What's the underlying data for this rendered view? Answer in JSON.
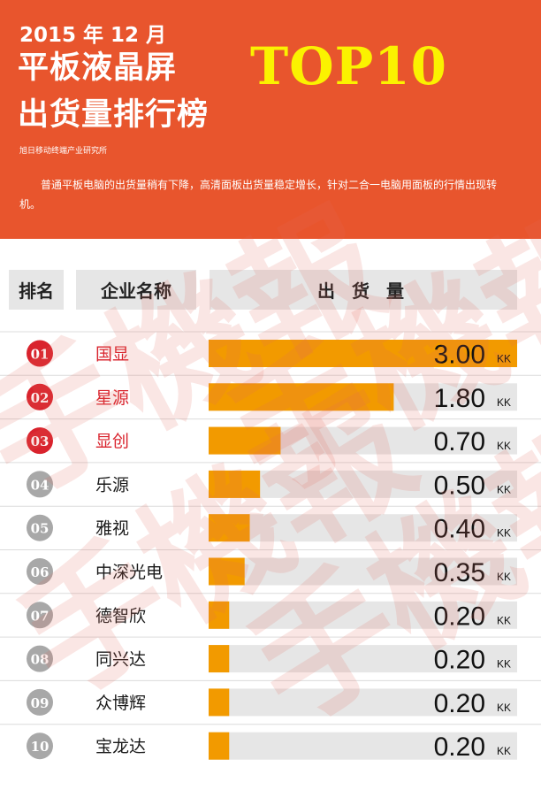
{
  "header": {
    "date": "2015 年 12 月",
    "title_line1": "平板液晶屏",
    "title_line2": "出货量排行榜",
    "badge": "TOP10",
    "source": "旭日移动终端产业研究所",
    "description": "普通平板电脑的出货量稍有下降，高清面板出货量稳定增长，针对二合一电脑用面板的行情出现转机。"
  },
  "table_header": {
    "rank": "排名",
    "company": "企业名称",
    "shipment": "出 货 量"
  },
  "watermark": "手機報",
  "colors": {
    "header_bg": "#e8552d",
    "badge_text": "#fbf200",
    "bar_fill": "#f29a00",
    "bar_track": "#e6e6e6",
    "top_rank": "#d9232d",
    "other_rank": "#a8a8a8"
  },
  "chart_data": {
    "type": "bar",
    "orientation": "horizontal",
    "unit": "KK",
    "xlim": [
      0,
      3.0
    ],
    "rows": [
      {
        "rank": "01",
        "company": "国显",
        "value": 3.0,
        "label": "3.00"
      },
      {
        "rank": "02",
        "company": "星源",
        "value": 1.8,
        "label": "1.80"
      },
      {
        "rank": "03",
        "company": "显创",
        "value": 0.7,
        "label": "0.70"
      },
      {
        "rank": "04",
        "company": "乐源",
        "value": 0.5,
        "label": "0.50"
      },
      {
        "rank": "05",
        "company": "雅视",
        "value": 0.4,
        "label": "0.40"
      },
      {
        "rank": "06",
        "company": "中深光电",
        "value": 0.35,
        "label": "0.35"
      },
      {
        "rank": "07",
        "company": "德智欣",
        "value": 0.2,
        "label": "0.20"
      },
      {
        "rank": "08",
        "company": "同兴达",
        "value": 0.2,
        "label": "0.20"
      },
      {
        "rank": "09",
        "company": "众博辉",
        "value": 0.2,
        "label": "0.20"
      },
      {
        "rank": "10",
        "company": "宝龙达",
        "value": 0.2,
        "label": "0.20"
      }
    ]
  }
}
